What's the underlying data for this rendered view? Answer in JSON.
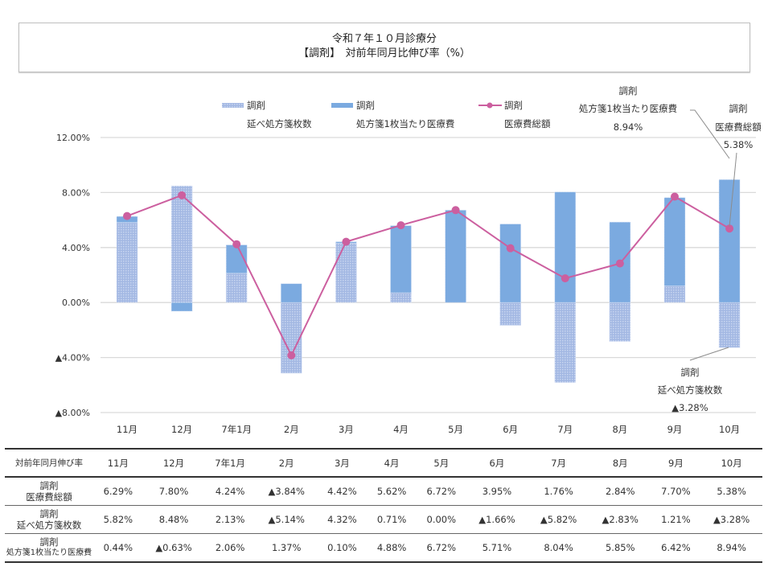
{
  "title": {
    "line1": "令和７年１０月診療分",
    "line2": "【調剤】　対前年同月比伸び率（%）"
  },
  "colors": {
    "bar_count": "#a3b8e3",
    "bar_per_sheet": "#7baae0",
    "line": "#cc5f9f",
    "grid": "#d9d9d9"
  },
  "chart_data": {
    "type": "bar",
    "subtype": "stacked-bar-with-line",
    "title": "【調剤】　対前年同月比伸び率（%）",
    "categories": [
      "11月",
      "12月",
      "7年1月",
      "2月",
      "3月",
      "4月",
      "5月",
      "6月",
      "7月",
      "8月",
      "9月",
      "10月"
    ],
    "series": [
      {
        "name": "調剤 延べ処方箋枚数",
        "type": "bar",
        "pattern": "dotted",
        "values": [
          5.82,
          8.48,
          2.13,
          -5.14,
          4.32,
          0.71,
          0.0,
          -1.66,
          -5.82,
          -2.83,
          1.21,
          -3.28
        ]
      },
      {
        "name": "調剤 処方箋1枚当たり医療費",
        "type": "bar",
        "pattern": "solid",
        "values": [
          0.44,
          -0.63,
          2.06,
          1.37,
          0.1,
          4.88,
          6.72,
          5.71,
          8.04,
          5.85,
          6.42,
          8.94
        ]
      },
      {
        "name": "調剤 医療費総額",
        "type": "line",
        "values": [
          6.29,
          7.8,
          4.24,
          -3.84,
          4.42,
          5.62,
          6.72,
          3.95,
          1.76,
          2.84,
          7.7,
          5.38
        ]
      }
    ],
    "ylim": [
      -8,
      12
    ],
    "yticks": [
      12,
      8,
      4,
      0,
      -4,
      -8
    ],
    "ytick_labels": [
      "12.00%",
      "8.00%",
      "4.00%",
      "0.00%",
      "▲4.00%",
      "▲8.00%"
    ],
    "grid": true,
    "legend_position": "top",
    "legend": [
      {
        "line1": "調剤",
        "line2": "延べ処方箋枚数"
      },
      {
        "line1": "調剤",
        "line2": "処方箋1枚当たり医療費"
      },
      {
        "line1": "調剤",
        "line2": "医療費総額"
      }
    ],
    "annotations": [
      {
        "line1": "調剤",
        "line2": "処方箋1枚当たり医療費",
        "line3": "8.94%"
      },
      {
        "line1": "調剤",
        "line2": "医療費総額",
        "line3": "5.38%"
      },
      {
        "line1": "調剤",
        "line2": "延べ処方箋枚数",
        "line3": "▲3.28%"
      }
    ]
  },
  "table": {
    "header_label": "対前年同月伸び率",
    "columns": [
      "11月",
      "12月",
      "7年1月",
      "2月",
      "3月",
      "4月",
      "5月",
      "6月",
      "7月",
      "8月",
      "9月",
      "10月"
    ],
    "rows": [
      {
        "label1": "調剤",
        "label2": "医療費総額",
        "values": [
          "6.29%",
          "7.80%",
          "4.24%",
          "▲3.84%",
          "4.42%",
          "5.62%",
          "6.72%",
          "3.95%",
          "1.76%",
          "2.84%",
          "7.70%",
          "5.38%"
        ]
      },
      {
        "label1": "調剤",
        "label2": "延べ処方箋枚数",
        "values": [
          "5.82%",
          "8.48%",
          "2.13%",
          "▲5.14%",
          "4.32%",
          "0.71%",
          "0.00%",
          "▲1.66%",
          "▲5.82%",
          "▲2.83%",
          "1.21%",
          "▲3.28%"
        ]
      },
      {
        "label1": "調剤",
        "label2": "処方箋1枚当たり医療費",
        "values": [
          "0.44%",
          "▲0.63%",
          "2.06%",
          "1.37%",
          "0.10%",
          "4.88%",
          "6.72%",
          "5.71%",
          "8.04%",
          "5.85%",
          "6.42%",
          "8.94%"
        ]
      }
    ]
  }
}
